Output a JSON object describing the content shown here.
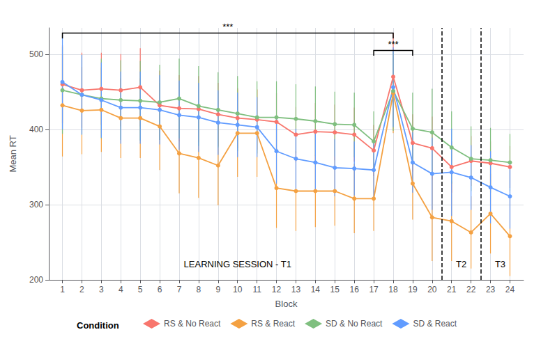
{
  "chart_data": {
    "type": "line",
    "xlabel": "Block",
    "ylabel": "Mean RT",
    "x": [
      1,
      2,
      3,
      4,
      5,
      6,
      7,
      8,
      9,
      10,
      11,
      12,
      13,
      14,
      15,
      16,
      17,
      18,
      19,
      20,
      21,
      22,
      23,
      24
    ],
    "xlim": [
      0.3,
      24.7
    ],
    "xticks": [
      1,
      2,
      3,
      4,
      5,
      6,
      7,
      8,
      9,
      10,
      11,
      12,
      13,
      14,
      15,
      16,
      17,
      18,
      19,
      20,
      21,
      22,
      23,
      24
    ],
    "ylim": [
      200,
      535
    ],
    "yticks": [
      200,
      300,
      400,
      500
    ],
    "grid": true,
    "legend": "bottom",
    "legend_title": "Condition",
    "marker": "circle",
    "series": [
      {
        "name": "RS & No React",
        "color": "#F8766D",
        "values": [
          460,
          452,
          454,
          452,
          456,
          432,
          428,
          427,
          420,
          415,
          413,
          410,
          393,
          397,
          396,
          393,
          372,
          470,
          382,
          375,
          350,
          358,
          355,
          350
        ],
        "err": [
          52,
          50,
          48,
          48,
          52,
          46,
          44,
          44,
          42,
          40,
          40,
          38,
          37,
          38,
          37,
          36,
          34,
          58,
          38,
          42,
          34,
          33,
          29,
          28
        ]
      },
      {
        "name": "RS & React",
        "color": "#F4A142",
        "values": [
          432,
          425,
          426,
          415,
          415,
          404,
          368,
          362,
          352,
          395,
          395,
          322,
          318,
          318,
          318,
          308,
          308,
          448,
          328,
          283,
          278,
          263,
          288,
          258
        ],
        "err": [
          68,
          58,
          56,
          53,
          53,
          58,
          53,
          53,
          53,
          58,
          58,
          53,
          53,
          48,
          46,
          46,
          43,
          53,
          48,
          58,
          53,
          48,
          53,
          53
        ]
      },
      {
        "name": "SD & No React",
        "color": "#7FBF7F",
        "values": [
          452,
          446,
          441,
          439,
          438,
          436,
          441,
          431,
          426,
          421,
          416,
          416,
          414,
          411,
          407,
          406,
          384,
          451,
          401,
          396,
          376,
          361,
          359,
          356
        ],
        "err": [
          58,
          53,
          53,
          53,
          53,
          50,
          53,
          53,
          50,
          50,
          48,
          48,
          46,
          46,
          43,
          43,
          40,
          53,
          48,
          58,
          48,
          43,
          43,
          38
        ]
      },
      {
        "name": "SD & React",
        "color": "#619CFF",
        "values": [
          463,
          446,
          439,
          429,
          429,
          426,
          419,
          416,
          409,
          406,
          403,
          371,
          361,
          356,
          349,
          348,
          346,
          456,
          356,
          341,
          343,
          336,
          323,
          311
        ],
        "err": [
          63,
          53,
          50,
          48,
          48,
          46,
          46,
          46,
          43,
          43,
          40,
          43,
          40,
          40,
          38,
          36,
          36,
          53,
          40,
          48,
          58,
          43,
          48,
          43
        ]
      }
    ],
    "vlines": [
      20.5,
      22.5
    ],
    "annotations": [
      {
        "text": "LEARNING SESSION - T1",
        "x": 10,
        "y": 215
      },
      {
        "text": "T2",
        "x": 21.5,
        "y": 215
      },
      {
        "text": "T3",
        "x": 23.5,
        "y": 215
      },
      {
        "text": "***",
        "x": 9.5,
        "y": 530
      },
      {
        "text": "***",
        "x": 18,
        "y": 507
      }
    ],
    "brackets": [
      {
        "x1": 1,
        "x2": 18,
        "y": 528,
        "drop": 7
      },
      {
        "x1": 17,
        "x2": 19,
        "y": 505,
        "drop": 7
      }
    ]
  }
}
